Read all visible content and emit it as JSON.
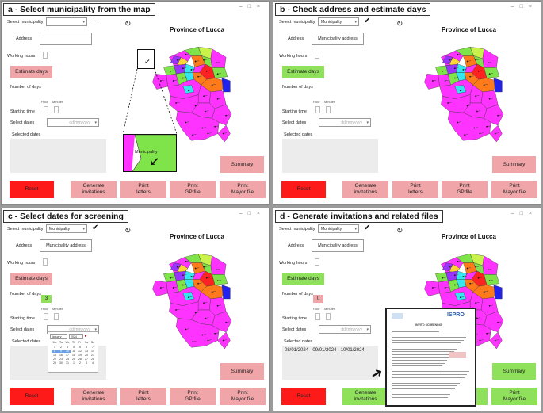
{
  "panels": {
    "a": {
      "title": "a - Select municipality from the map"
    },
    "b": {
      "title": "b - Check address and estimate days"
    },
    "c": {
      "title": "c - Select dates for screening"
    },
    "d": {
      "title": "d - Generate invitations and related files"
    }
  },
  "form": {
    "select_municipality": "Select municipality",
    "municipality_value": "Municipality",
    "address": "Address",
    "municipality_address": "Municipality address",
    "working_hours": "Working hours",
    "estimate_days": "Estimate days",
    "number_of_days": "Number of days",
    "hour": "Hour",
    "minutes": "Minutes",
    "starting_time": "Starting time",
    "select_dates": "Select dates",
    "selected_dates": "Selected dates",
    "date_placeholder": "dd/mm/yyyy",
    "days_c": "3",
    "days_d": "0",
    "selected_dates_d": "08/01/2024 - 09/01/2024 - 10/01/2024"
  },
  "map": {
    "title": "Province of Lucca",
    "zoom_label": "Municipality",
    "colors": {
      "magenta": "#ff33ff",
      "green": "#7fe34a",
      "purple": "#9933ff",
      "cyan": "#33e6f0",
      "orange": "#ff7a1a",
      "red": "#ff2222",
      "blue": "#2222ee",
      "yellow": "#ffd633",
      "lime": "#c9f24a"
    }
  },
  "buttons": {
    "reset": "Reset",
    "generate": [
      "Generate",
      "invitations"
    ],
    "print_letters": [
      "Print",
      "letters"
    ],
    "print_gp": [
      "Print",
      "GP file"
    ],
    "print_mayor": [
      "Print",
      "Mayor file"
    ],
    "summary": "Summary"
  },
  "calendar": {
    "month": "January",
    "year": "2024",
    "weekdays": [
      "Mo",
      "Tu",
      "We",
      "Th",
      "Fr",
      "Sa",
      "Su"
    ],
    "weeks": [
      [
        "",
        "",
        "",
        "",
        "",
        "",
        ""
      ],
      [
        "1",
        "2",
        "3",
        "4",
        "5",
        "6",
        "7"
      ],
      [
        "8",
        "9",
        "10",
        "11",
        "12",
        "13",
        "14"
      ],
      [
        "15",
        "16",
        "17",
        "18",
        "19",
        "20",
        "21"
      ],
      [
        "22",
        "23",
        "24",
        "25",
        "26",
        "27",
        "28"
      ],
      [
        "29",
        "30",
        "31",
        "1",
        "2",
        "3",
        "4"
      ]
    ]
  },
  "document": {
    "org": "ISPRO",
    "heading": "INVITO SCREENING"
  }
}
